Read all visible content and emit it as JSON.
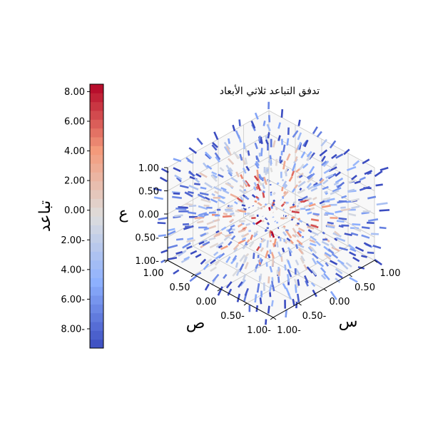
{
  "chart_data": {
    "type": "quiver3d",
    "title": "تدفق التباعد ثلاثي الأبعاد",
    "xlabel": "س",
    "ylabel": "ص",
    "zlabel": "ع",
    "xlim": [
      -1,
      1
    ],
    "ylim": [
      -1,
      1
    ],
    "zlim": [
      -1,
      1
    ],
    "x_ticks": [
      "1.00-",
      "0.50-",
      "0.00",
      "0.50",
      "1.00"
    ],
    "y_ticks": [
      "1.00-",
      "0.50-",
      "0.00",
      "0.50",
      "1.00"
    ],
    "z_ticks": [
      "1.00-",
      "0.50-",
      "0.00",
      "0.50",
      "1.00"
    ],
    "grid": true,
    "colormap": "coolwarm",
    "colorbar": {
      "label": "تباعد",
      "range": [
        -9.3,
        8.5
      ],
      "ticks": [
        {
          "value": 8,
          "label": "8.00"
        },
        {
          "value": 6,
          "label": "6.00"
        },
        {
          "value": 4,
          "label": "4.00"
        },
        {
          "value": 2,
          "label": "2.00"
        },
        {
          "value": 0,
          "label": "0.00"
        },
        {
          "value": -2,
          "label": "2.00-"
        },
        {
          "value": -4,
          "label": "4.00-"
        },
        {
          "value": -6,
          "label": "6.00-"
        },
        {
          "value": -8,
          "label": "8.00-"
        }
      ],
      "levels": 30,
      "placement": "left"
    },
    "colors": {
      "low": "#3b4cc0",
      "mid": "#dddddd",
      "high": "#b40426"
    }
  }
}
